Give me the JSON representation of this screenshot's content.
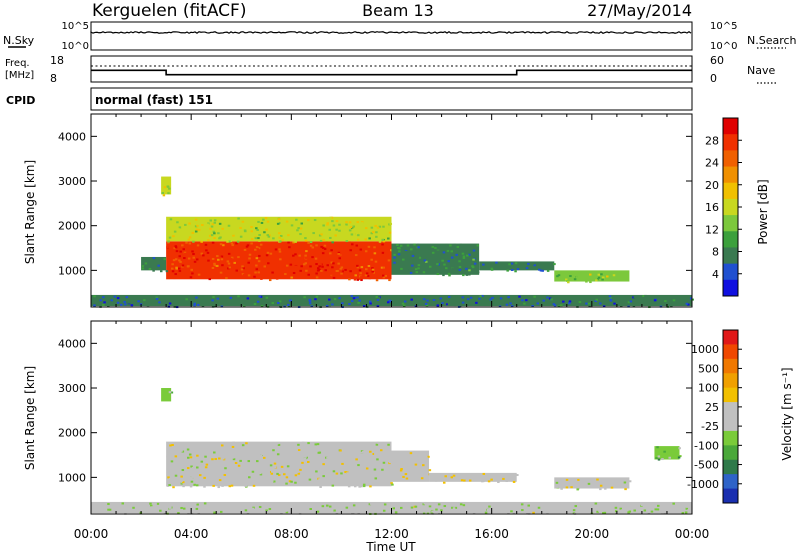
{
  "header": {
    "station": "Kerguelen (fitACF)",
    "beam": "Beam 13",
    "date": "27/May/2014"
  },
  "panels": {
    "nsky": {
      "label": "N.Sky",
      "ticks": [
        "10^5",
        "10^0"
      ]
    },
    "nsearch": {
      "label": "N.Search",
      "ticks": [
        "10^5",
        "10^0"
      ]
    },
    "freq": {
      "label_line1": "Freq.",
      "label_line2": "[MHz]",
      "ticks": [
        "18",
        "8"
      ]
    },
    "nave": {
      "label": "Nave",
      "ticks": [
        "60",
        "0"
      ]
    },
    "cpid": {
      "label": "CPID",
      "value": "normal (fast) 151"
    }
  },
  "axes": {
    "ylabel": "Slant Range [km]",
    "xlabel": "Time UT",
    "yticks": [
      "4000",
      "3000",
      "2000",
      "1000"
    ],
    "xticks": [
      "00:00",
      "04:00",
      "08:00",
      "12:00",
      "16:00",
      "20:00",
      "00:00"
    ]
  },
  "colorbars": {
    "power": {
      "label": "Power [dB]",
      "ticks": [
        "28",
        "24",
        "20",
        "16",
        "12",
        "8",
        "4"
      ],
      "colors": [
        "#1010e0",
        "#2050d0",
        "#3a7a50",
        "#3ca03c",
        "#7cc83c",
        "#c8d820",
        "#f0c000",
        "#f09000",
        "#f06000",
        "#f03000",
        "#e00000"
      ]
    },
    "velocity": {
      "label": "Velocity [m s⁻¹]",
      "ticks": [
        "1000",
        "500",
        "100",
        "25",
        "-25",
        "-100",
        "-500",
        "-1000"
      ],
      "colors": [
        "#1a2fb0",
        "#2e63c8",
        "#2f7a4a",
        "#4aa83a",
        "#7acb3a",
        "#c0c0c0",
        "#c0c0c0",
        "#f2c000",
        "#f0a000",
        "#f07800",
        "#f04800",
        "#e01818"
      ]
    }
  },
  "chart_data": [
    {
      "type": "heatmap",
      "title": "Power",
      "xlabel": "Time UT",
      "ylabel": "Slant Range [km]",
      "xlim": [
        0,
        24
      ],
      "ylim": [
        180,
        4500
      ],
      "units": "dB",
      "clim": [
        0,
        32
      ],
      "regions": [
        {
          "t": [
            3.0,
            12.0
          ],
          "r": [
            800,
            1650
          ],
          "v": 27
        },
        {
          "t": [
            3.0,
            12.0
          ],
          "r": [
            1650,
            2200
          ],
          "v": 15
        },
        {
          "t": [
            2.8,
            3.2
          ],
          "r": [
            2700,
            3100
          ],
          "v": 16
        },
        {
          "t": [
            2.0,
            3.0
          ],
          "r": [
            1000,
            1300
          ],
          "v": 6
        },
        {
          "t": [
            12.0,
            15.5
          ],
          "r": [
            900,
            1600
          ],
          "v": 8
        },
        {
          "t": [
            15.5,
            18.5
          ],
          "r": [
            1000,
            1200
          ],
          "v": 7
        },
        {
          "t": [
            18.5,
            21.5
          ],
          "r": [
            750,
            1000
          ],
          "v": 14
        },
        {
          "t": [
            0.0,
            24.0
          ],
          "r": [
            200,
            450
          ],
          "v": 6
        }
      ]
    },
    {
      "type": "heatmap",
      "title": "Velocity",
      "xlabel": "Time UT",
      "ylabel": "Slant Range [km]",
      "xlim": [
        0,
        24
      ],
      "ylim": [
        180,
        4500
      ],
      "units": "m s⁻¹",
      "clim": [
        -1000,
        1000
      ],
      "regions": [
        {
          "t": [
            3.0,
            12.0
          ],
          "r": [
            800,
            1800
          ],
          "v": 0
        },
        {
          "t": [
            12.0,
            13.5
          ],
          "r": [
            900,
            1600
          ],
          "v": 60
        },
        {
          "t": [
            13.5,
            17.0
          ],
          "r": [
            900,
            1100
          ],
          "v": 70
        },
        {
          "t": [
            18.5,
            21.5
          ],
          "r": [
            750,
            1000
          ],
          "v": 60
        },
        {
          "t": [
            2.8,
            3.2
          ],
          "r": [
            2700,
            3000
          ],
          "v": -300
        },
        {
          "t": [
            22.5,
            23.5
          ],
          "r": [
            1400,
            1700
          ],
          "v": -300
        },
        {
          "t": [
            0.0,
            24.0
          ],
          "r": [
            200,
            450
          ],
          "v": -80
        }
      ]
    },
    {
      "type": "line",
      "title": "Freq. [MHz]",
      "x": [
        0,
        3,
        3,
        17,
        17,
        24
      ],
      "y": [
        12.5,
        12.5,
        10.8,
        10.8,
        12.5,
        12.5
      ],
      "ylim": [
        8,
        18
      ]
    }
  ]
}
